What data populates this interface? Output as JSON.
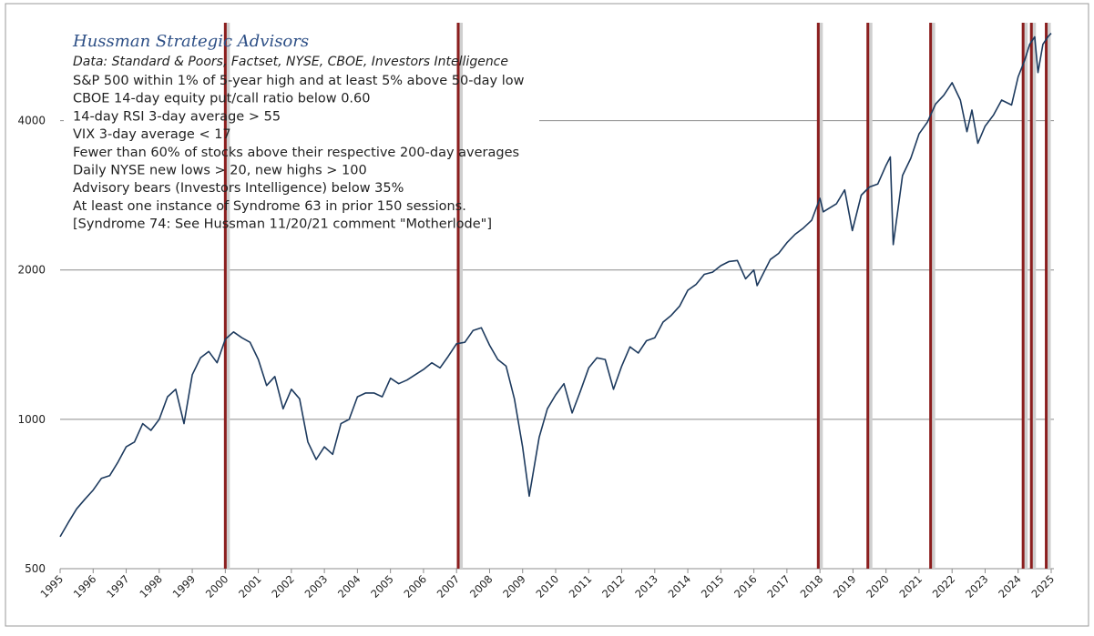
{
  "chart_data": {
    "type": "line",
    "log_scale": true,
    "grid": true,
    "title": "Hussman Strategic Advisors",
    "subtitle": "Data: Standard & Poors, Factset, NYSE, CBOE, Investors Intelligence",
    "annotations": [
      "S&P 500 within 1% of 5-year high and at least 5% above 50-day low",
      "CBOE 14-day equity put/call ratio below 0.60",
      "14-day RSI 3-day average > 55",
      "VIX 3-day average < 17",
      "Fewer than 60% of stocks above their respective 200-day averages",
      "Daily NYSE new lows > 20, new highs > 100",
      "Advisory bears (Investors Intelligence) below 35%",
      "At least one instance of Syndrome 63 in prior 150 sessions.",
      "[Syndrome 74:  See Hussman 11/20/21 comment \"Motherlode\"]"
    ],
    "xlim": [
      1995,
      2025
    ],
    "xticks": [
      1995,
      1996,
      1997,
      1998,
      1999,
      2000,
      2001,
      2002,
      2003,
      2004,
      2005,
      2006,
      2007,
      2008,
      2009,
      2010,
      2011,
      2012,
      2013,
      2014,
      2015,
      2016,
      2017,
      2018,
      2019,
      2020,
      2021,
      2022,
      2023,
      2024,
      2025
    ],
    "ylim": [
      500,
      6300
    ],
    "yticks": [
      500,
      1000,
      2000,
      4000
    ],
    "signal_color": "#8b1e1e",
    "signals": [
      2000.0,
      2007.05,
      2017.95,
      2019.45,
      2021.35,
      2024.15,
      2024.4,
      2024.85
    ],
    "series": [
      {
        "color": "#1d3a5e",
        "x": [
          1995.0,
          1995.25,
          1995.5,
          1995.75,
          1996.0,
          1996.25,
          1996.5,
          1996.75,
          1997.0,
          1997.25,
          1997.5,
          1997.75,
          1998.0,
          1998.25,
          1998.5,
          1998.75,
          1999.0,
          1999.25,
          1999.5,
          1999.75,
          2000.0,
          2000.25,
          2000.5,
          2000.75,
          2001.0,
          2001.25,
          2001.5,
          2001.75,
          2002.0,
          2002.25,
          2002.5,
          2002.75,
          2003.0,
          2003.25,
          2003.5,
          2003.75,
          2004.0,
          2004.25,
          2004.5,
          2004.75,
          2005.0,
          2005.25,
          2005.5,
          2005.75,
          2006.0,
          2006.25,
          2006.5,
          2006.75,
          2007.0,
          2007.25,
          2007.5,
          2007.75,
          2008.0,
          2008.25,
          2008.5,
          2008.75,
          2009.0,
          2009.2,
          2009.5,
          2009.75,
          2010.0,
          2010.25,
          2010.5,
          2010.75,
          2011.0,
          2011.25,
          2011.5,
          2011.75,
          2012.0,
          2012.25,
          2012.5,
          2012.75,
          2013.0,
          2013.25,
          2013.5,
          2013.75,
          2014.0,
          2014.25,
          2014.5,
          2014.75,
          2015.0,
          2015.25,
          2015.5,
          2015.75,
          2016.0,
          2016.1,
          2016.5,
          2016.75,
          2017.0,
          2017.25,
          2017.5,
          2017.75,
          2018.0,
          2018.1,
          2018.5,
          2018.75,
          2018.98,
          2019.25,
          2019.5,
          2019.75,
          2020.0,
          2020.13,
          2020.22,
          2020.5,
          2020.75,
          2021.0,
          2021.25,
          2021.5,
          2021.75,
          2022.0,
          2022.25,
          2022.45,
          2022.6,
          2022.78,
          2023.0,
          2023.25,
          2023.5,
          2023.8,
          2024.0,
          2024.2,
          2024.35,
          2024.5,
          2024.6,
          2024.75,
          2024.9,
          2025.0
        ],
        "values": [
          580,
          620,
          660,
          690,
          720,
          760,
          770,
          820,
          880,
          900,
          980,
          950,
          1000,
          1110,
          1150,
          980,
          1230,
          1330,
          1370,
          1300,
          1450,
          1500,
          1460,
          1430,
          1320,
          1170,
          1220,
          1050,
          1150,
          1100,
          900,
          830,
          880,
          850,
          980,
          1000,
          1110,
          1130,
          1130,
          1110,
          1210,
          1180,
          1200,
          1230,
          1260,
          1300,
          1270,
          1340,
          1420,
          1430,
          1510,
          1530,
          1410,
          1320,
          1280,
          1100,
          880,
          700,
          920,
          1050,
          1120,
          1180,
          1030,
          1140,
          1270,
          1330,
          1320,
          1150,
          1280,
          1400,
          1360,
          1440,
          1460,
          1570,
          1620,
          1690,
          1820,
          1870,
          1960,
          1980,
          2040,
          2080,
          2090,
          1920,
          2000,
          1860,
          2100,
          2160,
          2270,
          2360,
          2430,
          2520,
          2790,
          2620,
          2720,
          2900,
          2400,
          2830,
          2940,
          2980,
          3250,
          3380,
          2250,
          3100,
          3360,
          3760,
          3970,
          4320,
          4500,
          4770,
          4400,
          3800,
          4200,
          3600,
          3900,
          4100,
          4400,
          4300,
          4900,
          5300,
          5700,
          5900,
          5000,
          5700,
          5900,
          6000
        ]
      }
    ]
  }
}
